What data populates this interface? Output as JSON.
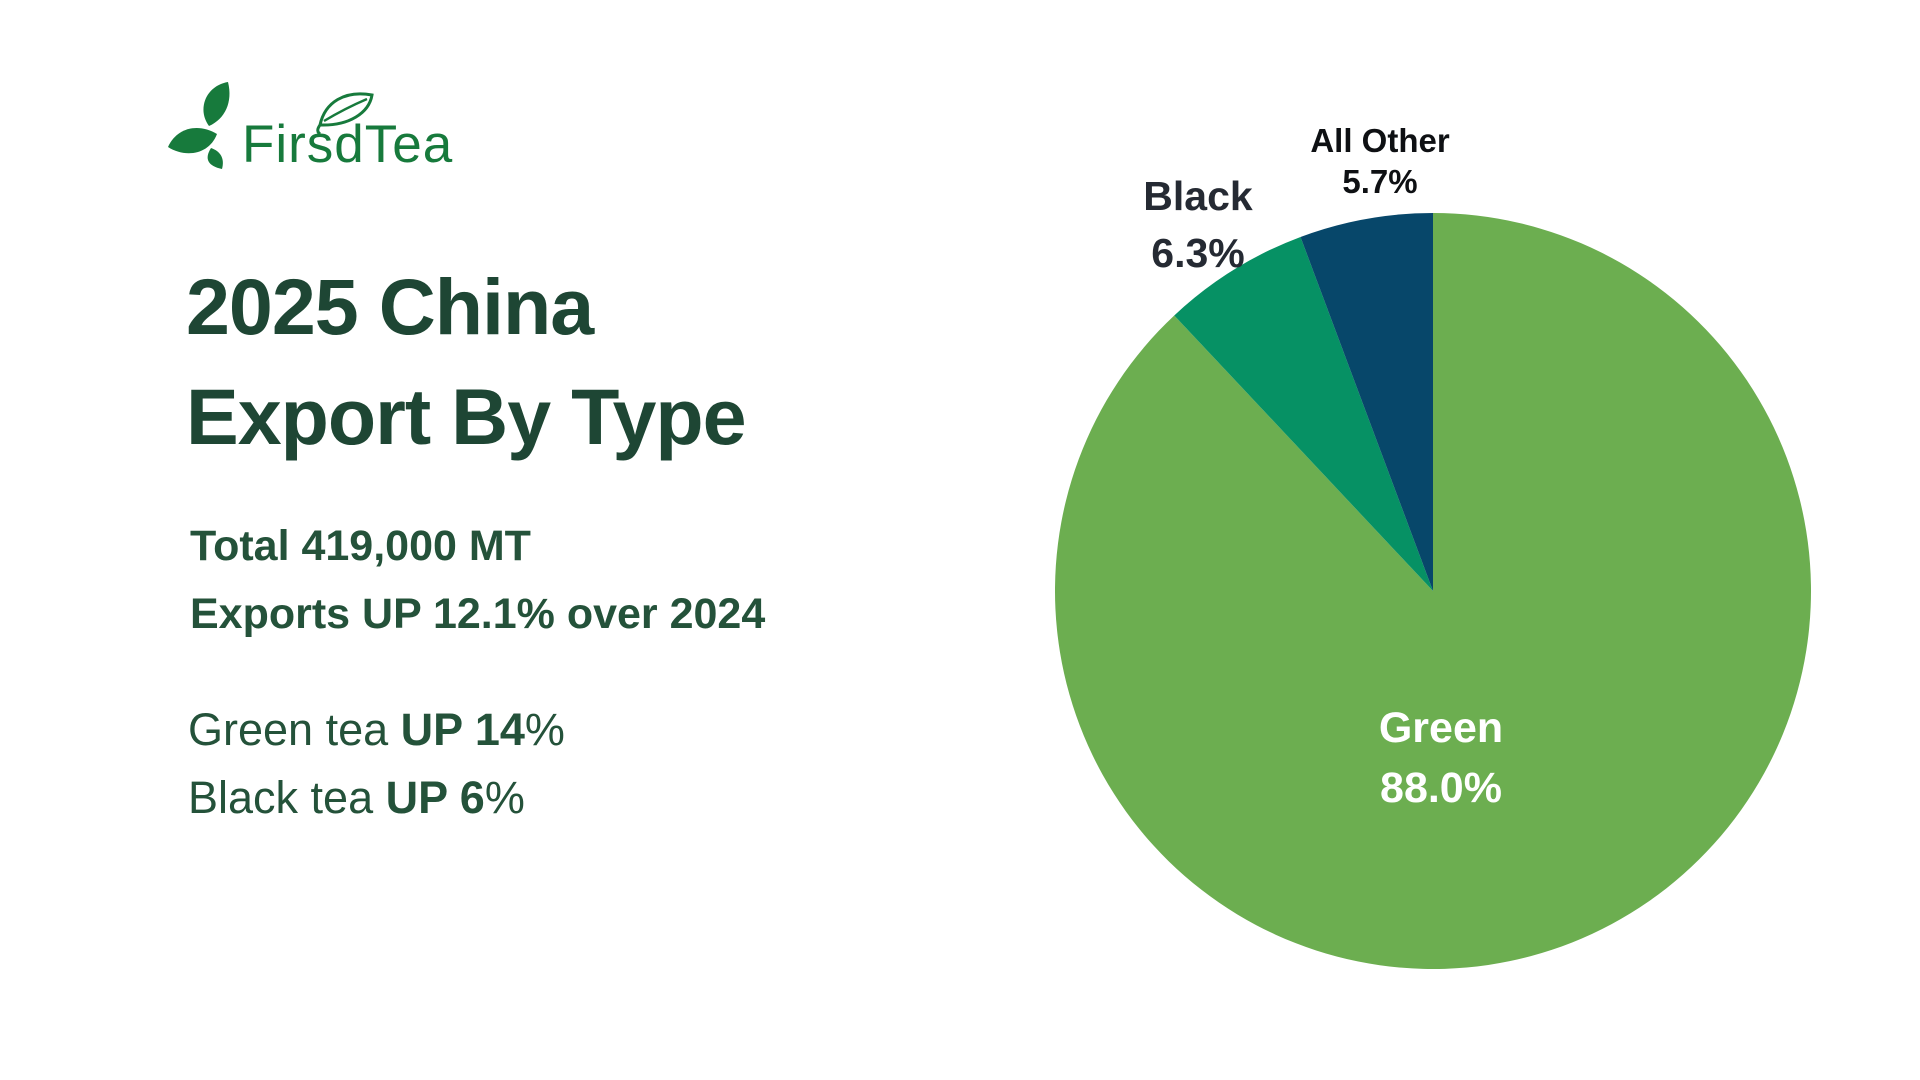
{
  "brand": {
    "name_part1": "Firsd",
    "name_part2": "Tea",
    "logo_green": "#177a3c"
  },
  "title": {
    "line1": "2025 China",
    "line2": "Export By Type"
  },
  "stats": {
    "line1": "Total 419,000 MT",
    "line2": "Exports UP 12.1% over 2024"
  },
  "notes": [
    {
      "prefix": "Green tea ",
      "bold": "UP 14",
      "suffix": "%"
    },
    {
      "prefix": "Black tea ",
      "bold": "UP 6",
      "suffix": "%"
    }
  ],
  "chart_data": {
    "type": "pie",
    "title": "2025 China Export By Type",
    "total_label": "Total 419,000 MT",
    "categories": [
      "Green",
      "Black",
      "All Other"
    ],
    "values": [
      88.0,
      6.3,
      5.7
    ],
    "slices": [
      {
        "label": "Green",
        "value": 88.0,
        "display": "88.0%",
        "color": "#6cae50",
        "label_color": "#ffffff",
        "label_placement": "inside"
      },
      {
        "label": "Black",
        "value": 6.3,
        "display": "6.3%",
        "color": "#069164",
        "label_color": "#252a33",
        "label_placement": "outside"
      },
      {
        "label": "All Other",
        "value": 5.7,
        "display": "5.7%",
        "color": "#07476a",
        "label_color": "#0e1013",
        "label_placement": "outside"
      }
    ],
    "start_angle_deg": 0,
    "direction": "clockwise",
    "legend": false
  },
  "colors": {
    "background": "#ffffff",
    "title_text": "#1e4634",
    "body_text": "#24523a",
    "logo_green": "#177a3c"
  }
}
